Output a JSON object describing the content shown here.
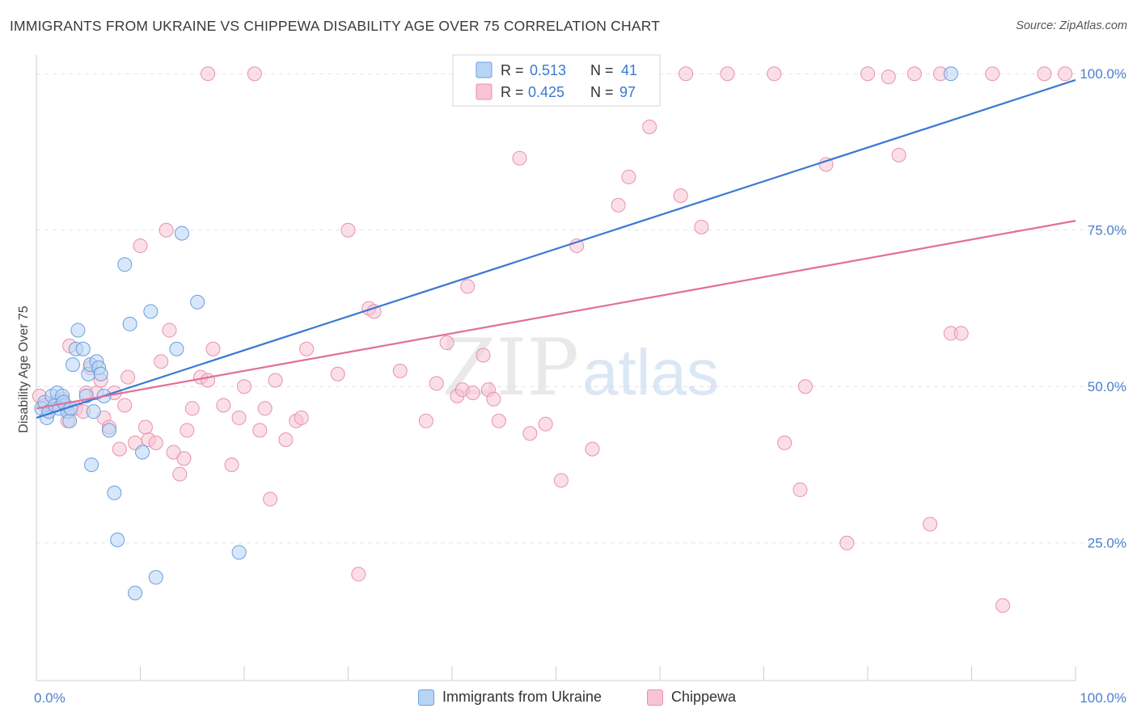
{
  "header": {
    "title": "IMMIGRANTS FROM UKRAINE VS CHIPPEWA DISABILITY AGE OVER 75 CORRELATION CHART",
    "source": "Source: ZipAtlas.com"
  },
  "watermark": {
    "part1": "ZIP",
    "part2": "atlas"
  },
  "colors": {
    "ukraine_fill": "#b8d4f5",
    "ukraine_stroke": "#6a9fe0",
    "ukraine_line": "#3a78d4",
    "chippewa_fill": "#f8c4d4",
    "chippewa_stroke": "#e891ad",
    "chippewa_line": "#e07099",
    "tick_text": "#4a7fd0",
    "grid": "#e2e2e2"
  },
  "legend_box": {
    "rows": [
      {
        "r_label": "R =",
        "r_value": "0.513",
        "n_label": "N =",
        "n_value": "41"
      },
      {
        "r_label": "R =",
        "r_value": "0.425",
        "n_label": "N =",
        "n_value": "97"
      }
    ]
  },
  "legend_bottom": {
    "items": [
      "Immigrants from Ukraine",
      "Chippewa"
    ]
  },
  "chart_data": {
    "type": "scatter",
    "title": "IMMIGRANTS FROM UKRAINE VS CHIPPEWA DISABILITY AGE OVER 75 CORRELATION CHART",
    "xlabel": "",
    "ylabel": "Disability Age Over 75",
    "xlim": [
      0,
      100
    ],
    "ylim": [
      3,
      103
    ],
    "x_tick_labels": [
      "0.0%",
      "100.0%"
    ],
    "y_ticks": [
      25,
      50,
      75,
      100
    ],
    "y_tick_labels": [
      "25.0%",
      "50.0%",
      "75.0%",
      "100.0%"
    ],
    "grid": true,
    "legend_position": "top-center",
    "series": [
      {
        "name": "Immigrants from Ukraine",
        "r": 0.513,
        "n": 41,
        "trend": {
          "x": [
            0,
            100
          ],
          "y": [
            45.0,
            99.0
          ]
        },
        "points": [
          [
            0.5,
            46.5
          ],
          [
            0.8,
            47.5
          ],
          [
            1.0,
            45.0
          ],
          [
            1.2,
            46.0
          ],
          [
            1.5,
            48.5
          ],
          [
            1.8,
            47.0
          ],
          [
            2.0,
            49.0
          ],
          [
            2.2,
            46.5
          ],
          [
            2.5,
            48.5
          ],
          [
            2.8,
            47.0
          ],
          [
            3.0,
            46.0
          ],
          [
            3.2,
            44.5
          ],
          [
            3.5,
            53.5
          ],
          [
            3.8,
            56.0
          ],
          [
            4.0,
            59.0
          ],
          [
            4.5,
            56.0
          ],
          [
            5.0,
            52.0
          ],
          [
            5.2,
            53.5
          ],
          [
            5.5,
            46.0
          ],
          [
            5.8,
            54.0
          ],
          [
            6.0,
            53.0
          ],
          [
            6.2,
            52.0
          ],
          [
            6.5,
            48.5
          ],
          [
            4.8,
            48.5
          ],
          [
            7.0,
            43.0
          ],
          [
            5.3,
            37.5
          ],
          [
            7.5,
            33.0
          ],
          [
            7.8,
            25.5
          ],
          [
            8.5,
            69.5
          ],
          [
            9.0,
            60.0
          ],
          [
            9.5,
            17.0
          ],
          [
            10.2,
            39.5
          ],
          [
            11.0,
            62.0
          ],
          [
            11.5,
            19.5
          ],
          [
            13.5,
            56.0
          ],
          [
            14.0,
            74.5
          ],
          [
            15.5,
            63.5
          ],
          [
            19.5,
            23.5
          ],
          [
            88.0,
            100.0
          ],
          [
            2.6,
            47.5
          ],
          [
            3.3,
            46.5
          ]
        ]
      },
      {
        "name": "Chippewa",
        "r": 0.425,
        "n": 97,
        "trend": {
          "x": [
            0,
            100
          ],
          "y": [
            46.5,
            76.5
          ]
        },
        "points": [
          [
            0.3,
            48.5
          ],
          [
            0.8,
            47.0
          ],
          [
            1.2,
            46.0
          ],
          [
            1.8,
            47.5
          ],
          [
            2.5,
            48.0
          ],
          [
            3.0,
            44.5
          ],
          [
            3.2,
            56.5
          ],
          [
            3.8,
            46.5
          ],
          [
            4.5,
            46.0
          ],
          [
            4.8,
            49.0
          ],
          [
            5.2,
            53.0
          ],
          [
            5.8,
            49.0
          ],
          [
            6.2,
            51.0
          ],
          [
            6.5,
            45.0
          ],
          [
            7.0,
            43.5
          ],
          [
            7.5,
            49.0
          ],
          [
            8.0,
            40.0
          ],
          [
            8.5,
            47.0
          ],
          [
            8.8,
            51.5
          ],
          [
            9.5,
            41.0
          ],
          [
            10.0,
            72.5
          ],
          [
            10.5,
            43.5
          ],
          [
            10.8,
            41.5
          ],
          [
            11.5,
            41.0
          ],
          [
            12.0,
            54.0
          ],
          [
            12.5,
            75.0
          ],
          [
            12.8,
            59.0
          ],
          [
            13.2,
            39.5
          ],
          [
            13.8,
            36.0
          ],
          [
            14.2,
            38.5
          ],
          [
            14.5,
            43.0
          ],
          [
            15.0,
            46.5
          ],
          [
            15.8,
            51.5
          ],
          [
            16.5,
            51.0
          ],
          [
            17.0,
            56.0
          ],
          [
            18.0,
            47.0
          ],
          [
            18.8,
            37.5
          ],
          [
            19.5,
            45.0
          ],
          [
            20.0,
            50.0
          ],
          [
            21.5,
            43.0
          ],
          [
            22.0,
            46.5
          ],
          [
            22.5,
            32.0
          ],
          [
            23.0,
            51.0
          ],
          [
            24.0,
            41.5
          ],
          [
            25.0,
            44.5
          ],
          [
            25.5,
            45.0
          ],
          [
            26.0,
            56.0
          ],
          [
            29.0,
            52.0
          ],
          [
            30.0,
            75.0
          ],
          [
            31.0,
            20.0
          ],
          [
            32.0,
            62.5
          ],
          [
            32.5,
            62.0
          ],
          [
            35.0,
            52.5
          ],
          [
            37.5,
            44.5
          ],
          [
            38.5,
            50.5
          ],
          [
            39.5,
            57.0
          ],
          [
            40.5,
            48.5
          ],
          [
            41.0,
            49.5
          ],
          [
            41.5,
            66.0
          ],
          [
            42.0,
            49.0
          ],
          [
            43.0,
            55.0
          ],
          [
            43.5,
            49.5
          ],
          [
            44.0,
            48.0
          ],
          [
            44.5,
            44.5
          ],
          [
            46.5,
            86.5
          ],
          [
            47.5,
            42.5
          ],
          [
            49.0,
            44.0
          ],
          [
            50.5,
            35.0
          ],
          [
            52.0,
            72.5
          ],
          [
            53.5,
            40.0
          ],
          [
            56.0,
            79.0
          ],
          [
            57.0,
            83.5
          ],
          [
            59.0,
            91.5
          ],
          [
            62.0,
            80.5
          ],
          [
            62.5,
            100.0
          ],
          [
            64.0,
            75.5
          ],
          [
            66.5,
            100.0
          ],
          [
            71.0,
            100.0
          ],
          [
            72.0,
            41.0
          ],
          [
            73.5,
            33.5
          ],
          [
            74.0,
            50.0
          ],
          [
            76.0,
            85.5
          ],
          [
            78.0,
            25.0
          ],
          [
            80.0,
            100.0
          ],
          [
            82.0,
            99.5
          ],
          [
            83.0,
            87.0
          ],
          [
            84.5,
            100.0
          ],
          [
            86.0,
            28.0
          ],
          [
            87.0,
            100.0
          ],
          [
            88.0,
            58.5
          ],
          [
            89.0,
            58.5
          ],
          [
            92.0,
            100.0
          ],
          [
            93.0,
            15.0
          ],
          [
            97.0,
            100.0
          ],
          [
            99.0,
            100.0
          ],
          [
            21.0,
            100.0
          ],
          [
            16.5,
            100.0
          ]
        ]
      }
    ]
  }
}
